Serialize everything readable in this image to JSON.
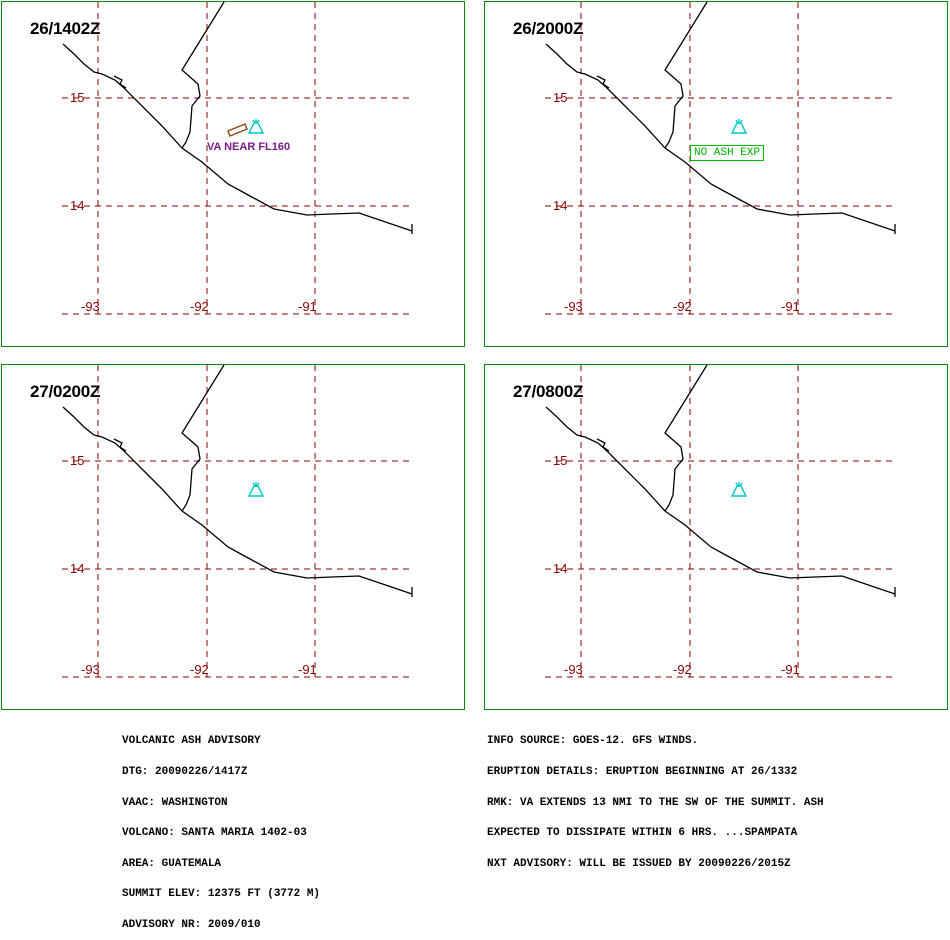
{
  "panels": [
    {
      "time": "26/1402Z",
      "ash_label": "VA NEAR FL160",
      "no_ash_label": ""
    },
    {
      "time": "26/2000Z",
      "ash_label": "",
      "no_ash_label": "NO ASH EXP"
    },
    {
      "time": "27/0200Z",
      "ash_label": "",
      "no_ash_label": ""
    },
    {
      "time": "27/0800Z",
      "ash_label": "",
      "no_ash_label": ""
    }
  ],
  "map": {
    "lat_labels": [
      "15",
      "14"
    ],
    "lon_labels": [
      "-93",
      "-92",
      "-91"
    ],
    "colors": {
      "grid": "#8b0000",
      "coast": "#000000",
      "volcano": "#00c8c8",
      "ash": "#8b4513",
      "frame": "#0a8a0a"
    },
    "volcano_icon": "volcano-icon"
  },
  "advisory_left": [
    "VOLCANIC ASH ADVISORY",
    "DTG: 20090226/1417Z",
    "VAAC: WASHINGTON",
    "VOLCANO: SANTA MARIA 1402-03",
    "AREA: GUATEMALA",
    "SUMMIT ELEV: 12375 FT (3772 M)",
    "ADVISORY NR: 2009/010"
  ],
  "advisory_right": [
    "INFO SOURCE: GOES-12. GFS WINDS.",
    "ERUPTION DETAILS: ERUPTION BEGINNING AT 26/1332",
    "RMK: VA EXTENDS 13 NMI TO THE SW OF THE SUMMIT. ASH",
    "EXPECTED TO DISSIPATE WITHIN 6 HRS. ...SPAMPATA",
    "NXT ADVISORY: WILL BE ISSUED BY 20090226/2015Z"
  ]
}
